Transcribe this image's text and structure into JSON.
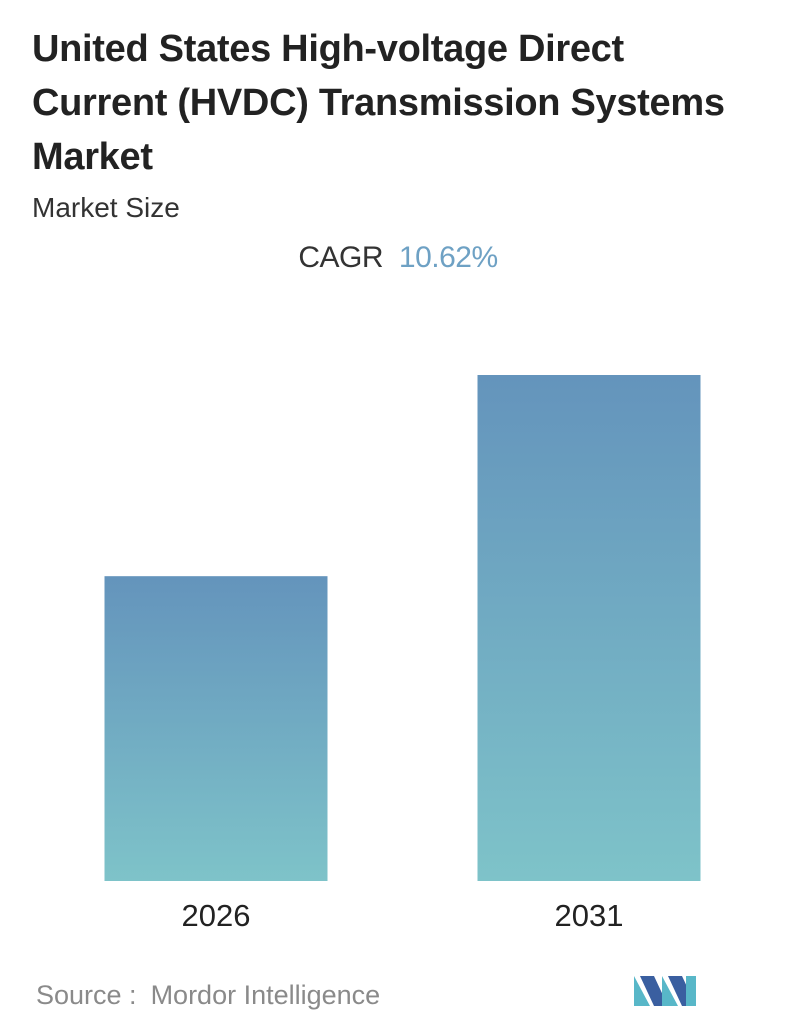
{
  "header": {
    "title": "United States High-voltage Direct Current (HVDC) Transmission Systems Market",
    "subtitle": "Market Size",
    "cagr_label": "CAGR",
    "cagr_value": "10.62%"
  },
  "chart_data": {
    "type": "bar",
    "categories": [
      "2026",
      "2031"
    ],
    "values": [
      1.0,
      1.66
    ],
    "value_note_unitless": true,
    "title": "United States High-voltage Direct Current (HVDC) Transmission Systems Market",
    "subtitle": "Market Size",
    "xlabel": "",
    "ylabel": "",
    "grid": false,
    "legend": "none",
    "colors": {
      "bar_top": "#6494bc",
      "bar_bottom": "#7ec3c9"
    }
  },
  "footer": {
    "source_label": "Source :",
    "source_value": "Mordor Intelligence",
    "logo_colors": {
      "dark": "#3a5fa0",
      "light": "#58b7c8"
    }
  }
}
